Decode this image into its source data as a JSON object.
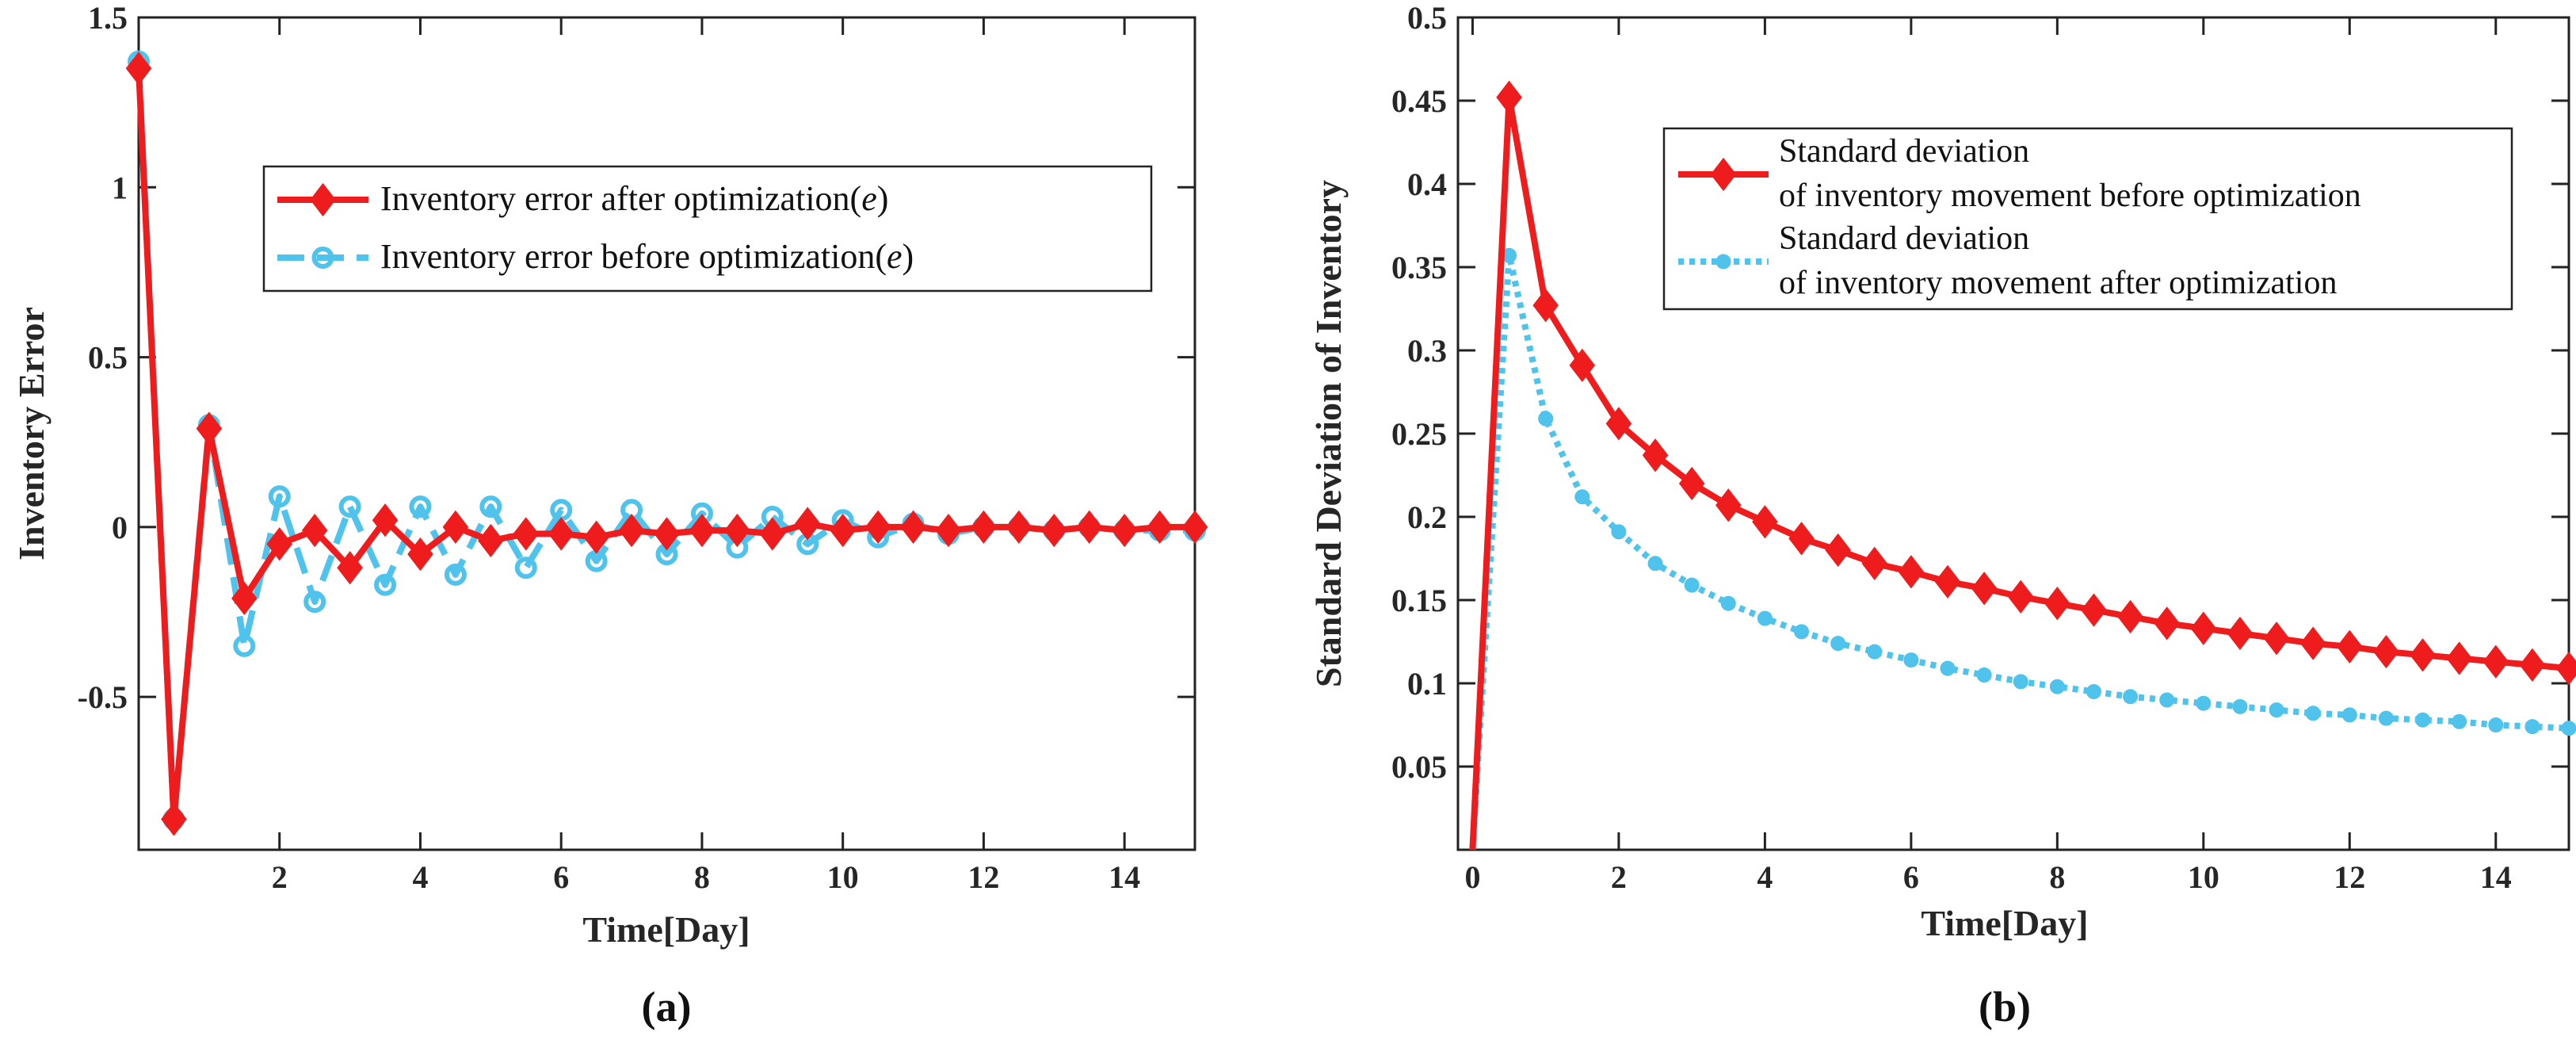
{
  "figure": {
    "panel_a_label": "(a)",
    "panel_b_label": "(b)"
  },
  "chart_data": [
    {
      "type": "line",
      "xlabel": "Time[Day]",
      "ylabel": "Inventory Error",
      "xlim": [
        0,
        15
      ],
      "ylim": [
        -0.95,
        1.5
      ],
      "xticks": [
        2,
        4,
        6,
        8,
        10,
        12,
        14
      ],
      "xtick_labels": [
        "2",
        "4",
        "6",
        "8",
        "10",
        "12",
        "14"
      ],
      "yticks": [
        -0.5,
        0,
        0.5,
        1,
        1.5
      ],
      "ytick_labels": [
        "-0.5",
        "0",
        "0.5",
        "1",
        "1.5"
      ],
      "grid": false,
      "legend_position": "upper-right",
      "x": [
        0,
        0.5,
        1,
        1.5,
        2,
        2.5,
        3,
        3.5,
        4,
        4.5,
        5,
        5.5,
        6,
        6.5,
        7,
        7.5,
        8,
        8.5,
        9,
        9.5,
        10,
        10.5,
        11,
        11.5,
        12,
        12.5,
        13,
        13.5,
        14,
        14.5,
        15
      ],
      "series": [
        {
          "name": "Inventory error after optimization(e)",
          "legend_main": "Inventory error after optimization(",
          "legend_var": "e",
          "legend_close": ")",
          "color": "#ee1c1c",
          "style": "solid",
          "marker": "diamond",
          "values": [
            1.35,
            -0.86,
            0.29,
            -0.21,
            -0.05,
            -0.01,
            -0.12,
            0.02,
            -0.08,
            0.0,
            -0.04,
            -0.02,
            -0.02,
            -0.03,
            -0.01,
            -0.02,
            -0.01,
            -0.01,
            -0.02,
            0.01,
            -0.01,
            0.0,
            0.0,
            -0.01,
            0.0,
            0.0,
            -0.01,
            0.0,
            -0.01,
            0.0,
            0.0
          ]
        },
        {
          "name": "Inventory error before optimization(e)",
          "legend_main": "Inventory error before optimization(",
          "legend_var": "e",
          "legend_close": ")",
          "color": "#4fc3ec",
          "style": "dashed",
          "marker": "circle",
          "values": [
            1.37,
            -0.86,
            0.3,
            -0.35,
            0.09,
            -0.22,
            0.06,
            -0.17,
            0.06,
            -0.14,
            0.06,
            -0.12,
            0.05,
            -0.1,
            0.05,
            -0.08,
            0.04,
            -0.06,
            0.03,
            -0.05,
            0.02,
            -0.03,
            0.01,
            -0.02,
            0.0,
            0.0,
            -0.01,
            0.0,
            -0.01,
            -0.01,
            -0.01
          ]
        }
      ]
    },
    {
      "type": "line",
      "xlabel": "Time[Day]",
      "ylabel": "Standard Deviation of Inventory",
      "xlim": [
        -0.2,
        15
      ],
      "ylim": [
        0,
        0.5
      ],
      "xticks": [
        0,
        2,
        4,
        6,
        8,
        10,
        12,
        14
      ],
      "xtick_labels": [
        "0",
        "2",
        "4",
        "6",
        "8",
        "10",
        "12",
        "14"
      ],
      "yticks": [
        0.05,
        0.1,
        0.15,
        0.2,
        0.25,
        0.3,
        0.35,
        0.4,
        0.45,
        0.5
      ],
      "ytick_labels": [
        "0.05",
        "0.1",
        "0.15",
        "0.2",
        "0.25",
        "0.3",
        "0.35",
        "0.4",
        "0.45",
        "0.5"
      ],
      "grid": false,
      "legend_position": "upper-right",
      "x": [
        0,
        0.5,
        1,
        1.5,
        2,
        2.5,
        3,
        3.5,
        4,
        4.5,
        5,
        5.5,
        6,
        6.5,
        7,
        7.5,
        8,
        8.5,
        9,
        9.5,
        10,
        10.5,
        11,
        11.5,
        12,
        12.5,
        13,
        13.5,
        14,
        14.5,
        15
      ],
      "series": [
        {
          "name": "Standard deviation of inventory movement before optimization",
          "legend_line1": "Standard deviation",
          "legend_line2": "of inventory movement before optimization",
          "color": "#ee1c1c",
          "style": "solid",
          "marker": "diamond",
          "values": [
            0.0,
            0.452,
            0.327,
            0.291,
            0.256,
            0.237,
            0.22,
            0.207,
            0.197,
            0.187,
            0.18,
            0.172,
            0.167,
            0.161,
            0.157,
            0.152,
            0.148,
            0.144,
            0.14,
            0.136,
            0.133,
            0.13,
            0.127,
            0.124,
            0.122,
            0.119,
            0.117,
            0.115,
            0.113,
            0.111,
            0.109
          ]
        },
        {
          "name": "Standard deviation of inventory movement after optimization",
          "legend_line1": "Standard deviation",
          "legend_line2": "of inventory movement after optimization",
          "color": "#4fc3ec",
          "style": "dotted",
          "marker": "dot",
          "values": [
            0.0,
            0.357,
            0.259,
            0.212,
            0.191,
            0.172,
            0.159,
            0.148,
            0.139,
            0.131,
            0.124,
            0.119,
            0.114,
            0.109,
            0.105,
            0.101,
            0.098,
            0.095,
            0.092,
            0.09,
            0.088,
            0.086,
            0.084,
            0.082,
            0.081,
            0.079,
            0.078,
            0.077,
            0.075,
            0.074,
            0.073
          ]
        }
      ]
    }
  ]
}
